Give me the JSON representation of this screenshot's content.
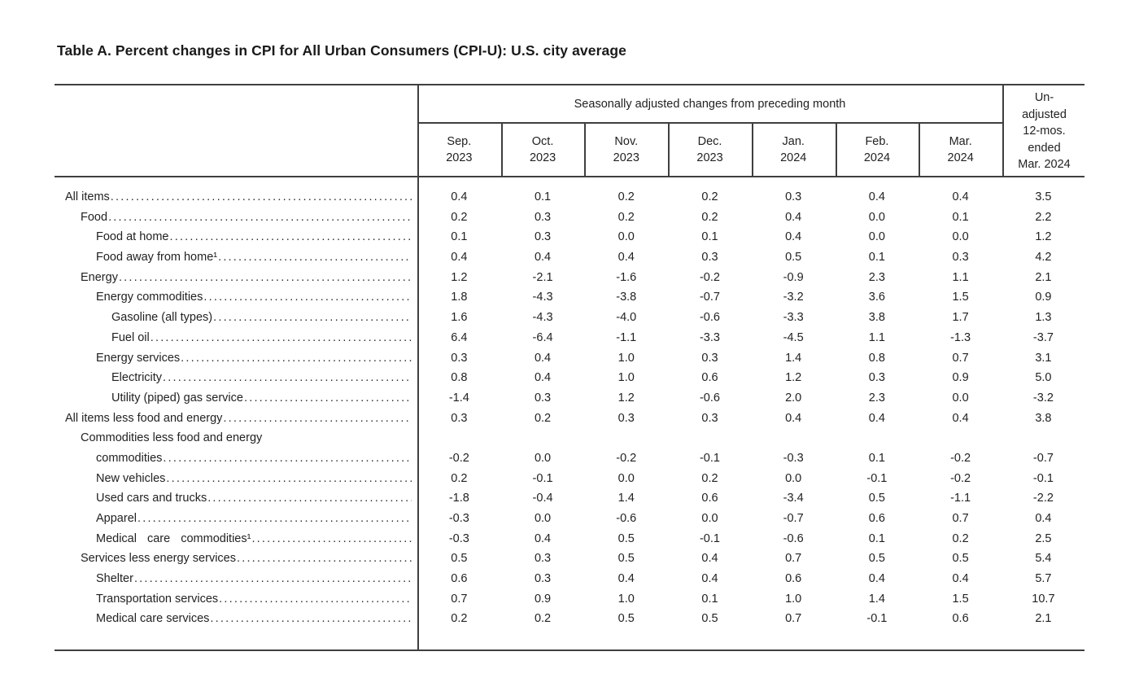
{
  "page": {
    "title": "Table A. Percent changes in CPI for All Urban Consumers (CPI-U): U.S. city average"
  },
  "table": {
    "spanner_header": "Seasonally adjusted changes from preceding month",
    "unadjusted_header": "Un-\nadjusted\n12-mos.\nended\nMar. 2024",
    "month_headers": [
      "Sep.\n2023",
      "Oct.\n2023",
      "Nov.\n2023",
      "Dec.\n2023",
      "Jan.\n2024",
      "Feb.\n2024",
      "Mar.\n2024"
    ],
    "rows": [
      {
        "label": "All items",
        "indent": 0,
        "values": [
          "0.4",
          "0.1",
          "0.2",
          "0.2",
          "0.3",
          "0.4",
          "0.4",
          "3.5"
        ]
      },
      {
        "label": "Food",
        "indent": 1,
        "values": [
          "0.2",
          "0.3",
          "0.2",
          "0.2",
          "0.4",
          "0.0",
          "0.1",
          "2.2"
        ]
      },
      {
        "label": "Food at home",
        "indent": 2,
        "values": [
          "0.1",
          "0.3",
          "0.0",
          "0.1",
          "0.4",
          "0.0",
          "0.0",
          "1.2"
        ]
      },
      {
        "label": "Food away from home¹",
        "indent": 2,
        "values": [
          "0.4",
          "0.4",
          "0.4",
          "0.3",
          "0.5",
          "0.1",
          "0.3",
          "4.2"
        ]
      },
      {
        "label": "Energy",
        "indent": 1,
        "values": [
          "1.2",
          "-2.1",
          "-1.6",
          "-0.2",
          "-0.9",
          "2.3",
          "1.1",
          "2.1"
        ]
      },
      {
        "label": "Energy commodities",
        "indent": 2,
        "values": [
          "1.8",
          "-4.3",
          "-3.8",
          "-0.7",
          "-3.2",
          "3.6",
          "1.5",
          "0.9"
        ]
      },
      {
        "label": "Gasoline (all types)",
        "indent": 3,
        "values": [
          "1.6",
          "-4.3",
          "-4.0",
          "-0.6",
          "-3.3",
          "3.8",
          "1.7",
          "1.3"
        ]
      },
      {
        "label": "Fuel oil",
        "indent": 3,
        "values": [
          "6.4",
          "-6.4",
          "-1.1",
          "-3.3",
          "-4.5",
          "1.1",
          "-1.3",
          "-3.7"
        ]
      },
      {
        "label": "Energy services",
        "indent": 2,
        "values": [
          "0.3",
          "0.4",
          "1.0",
          "0.3",
          "1.4",
          "0.8",
          "0.7",
          "3.1"
        ]
      },
      {
        "label": "Electricity",
        "indent": 3,
        "values": [
          "0.8",
          "0.4",
          "1.0",
          "0.6",
          "1.2",
          "0.3",
          "0.9",
          "5.0"
        ]
      },
      {
        "label": "Utility (piped) gas service",
        "indent": 3,
        "values": [
          "-1.4",
          "0.3",
          "1.2",
          "-0.6",
          "2.0",
          "2.3",
          "0.0",
          "-3.2"
        ]
      },
      {
        "label": "All items less food and energy",
        "indent": 0,
        "values": [
          "0.3",
          "0.2",
          "0.3",
          "0.3",
          "0.4",
          "0.4",
          "0.4",
          "3.8"
        ]
      },
      {
        "label": "Commodities less food and energy",
        "label2": "commodities",
        "indent": 1,
        "values": [
          "-0.2",
          "0.0",
          "-0.2",
          "-0.1",
          "-0.3",
          "0.1",
          "-0.2",
          "-0.7"
        ]
      },
      {
        "label": "New vehicles",
        "indent": 2,
        "values": [
          "0.2",
          "-0.1",
          "0.0",
          "0.2",
          "0.0",
          "-0.1",
          "-0.2",
          "-0.1"
        ]
      },
      {
        "label": "Used cars and trucks",
        "indent": 2,
        "values": [
          "-1.8",
          "-0.4",
          "1.4",
          "0.6",
          "-3.4",
          "0.5",
          "-1.1",
          "-2.2"
        ]
      },
      {
        "label": "Apparel",
        "indent": 2,
        "values": [
          "-0.3",
          "0.0",
          "-0.6",
          "0.0",
          "-0.7",
          "0.6",
          "0.7",
          "0.4"
        ]
      },
      {
        "label": "Medical care commodities¹",
        "indent": 2,
        "spread": true,
        "values": [
          "-0.3",
          "0.4",
          "0.5",
          "-0.1",
          "-0.6",
          "0.1",
          "0.2",
          "2.5"
        ]
      },
      {
        "label": "Services less energy services",
        "indent": 1,
        "values": [
          "0.5",
          "0.3",
          "0.5",
          "0.4",
          "0.7",
          "0.5",
          "0.5",
          "5.4"
        ]
      },
      {
        "label": "Shelter",
        "indent": 2,
        "values": [
          "0.6",
          "0.3",
          "0.4",
          "0.4",
          "0.6",
          "0.4",
          "0.4",
          "5.7"
        ]
      },
      {
        "label": "Transportation services",
        "indent": 2,
        "values": [
          "0.7",
          "0.9",
          "1.0",
          "0.1",
          "1.0",
          "1.4",
          "1.5",
          "10.7"
        ]
      },
      {
        "label": "Medical care services",
        "indent": 2,
        "values": [
          "0.2",
          "0.2",
          "0.5",
          "0.5",
          "0.7",
          "-0.1",
          "0.6",
          "2.1"
        ]
      }
    ]
  }
}
